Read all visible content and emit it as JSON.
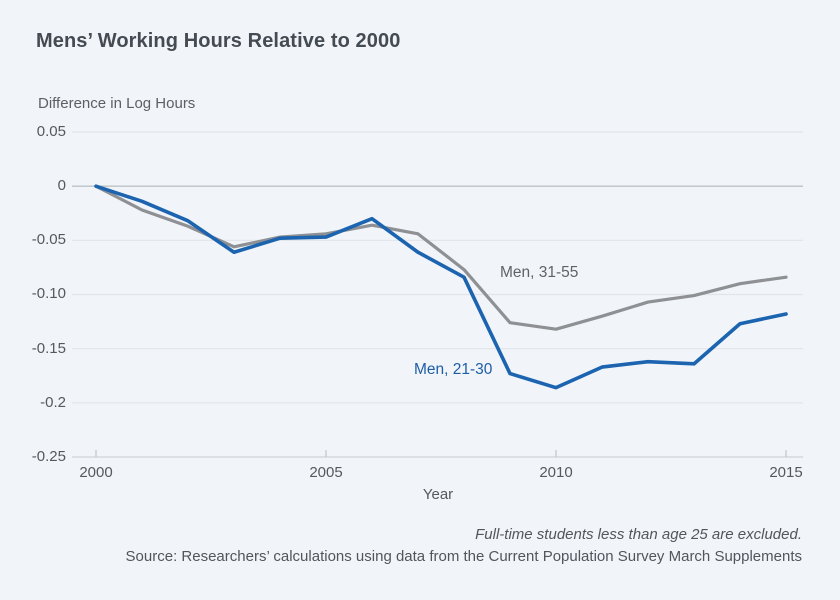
{
  "page": {
    "background": "#f1f5f9"
  },
  "chart_data": {
    "type": "line",
    "title": "Mens’ Working Hours Relative to 2000",
    "ylabel": "Difference in Log Hours",
    "xlabel": "Year",
    "xlim": [
      2000,
      2015
    ],
    "ylim": [
      -0.25,
      0.05
    ],
    "grid": "horizontal",
    "legend": "inline-labels",
    "x": [
      2000,
      2001,
      2002,
      2003,
      2004,
      2005,
      2006,
      2007,
      2008,
      2009,
      2010,
      2011,
      2012,
      2013,
      2014,
      2015
    ],
    "series": [
      {
        "name": "Men, 31-55",
        "color": "#8e9093",
        "label_color": "#5d6368",
        "values": [
          0,
          -0.022,
          -0.037,
          -0.056,
          -0.047,
          -0.044,
          -0.036,
          -0.044,
          -0.077,
          -0.126,
          -0.132,
          -0.12,
          -0.107,
          -0.101,
          -0.09,
          -0.084
        ]
      },
      {
        "name": "Men, 21-30",
        "color": "#1c64b0",
        "label_color": "#1d5da6",
        "values": [
          0,
          -0.014,
          -0.032,
          -0.061,
          -0.048,
          -0.047,
          -0.03,
          -0.061,
          -0.084,
          -0.173,
          -0.186,
          -0.167,
          -0.162,
          -0.164,
          -0.127,
          -0.118
        ]
      }
    ],
    "yticks": [
      {
        "value": 0.05,
        "label": "0.05"
      },
      {
        "value": 0,
        "label": "0"
      },
      {
        "value": -0.05,
        "label": "-0.05"
      },
      {
        "value": -0.1,
        "label": "-0.10"
      },
      {
        "value": -0.15,
        "label": "-0.15"
      },
      {
        "value": -0.2,
        "label": "-0.2"
      },
      {
        "value": -0.25,
        "label": "-0.25"
      }
    ],
    "xticks": [
      {
        "value": 2000,
        "label": "2000"
      },
      {
        "value": 2005,
        "label": "2005"
      },
      {
        "value": 2010,
        "label": "2010"
      },
      {
        "value": 2015,
        "label": "2015"
      }
    ],
    "colors": {
      "gridline": "#e1e5e9",
      "zero_line": "#bcc1c6",
      "axis_line": "#cfd4d8",
      "tick_mark": "#c6cbd0"
    }
  },
  "footer": {
    "note": "Full-time students less than age 25 are excluded.",
    "source": "Source: Researchers’ calculations using data from the Current Population Survey March Supplements"
  }
}
